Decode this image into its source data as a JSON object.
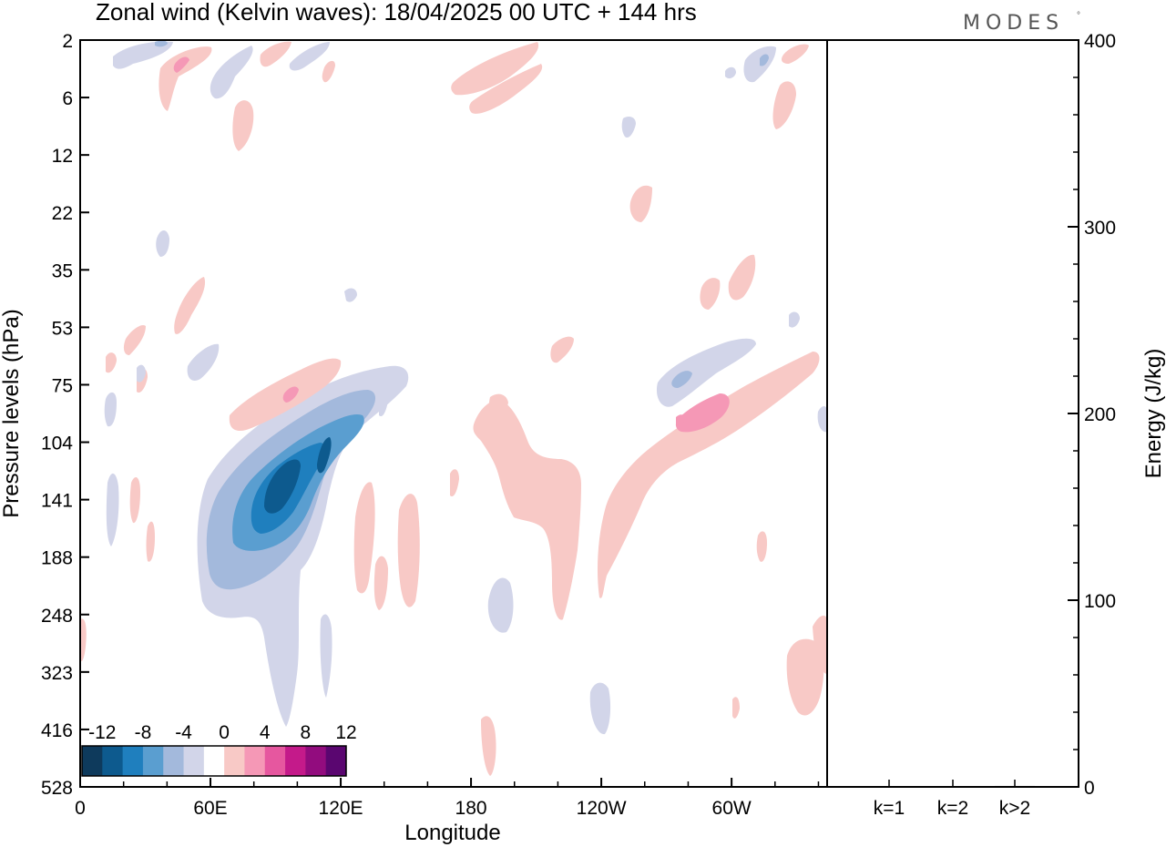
{
  "header": {
    "title": "Zonal wind (Kelvin waves):  18/04/2025  00 UTC  + 144 hrs",
    "logo_text": "MODES",
    "logo_mark": "°"
  },
  "chart_data": [
    {
      "type": "heatmap",
      "title": "Zonal wind (Kelvin waves):  18/04/2025  00 UTC  + 144 hrs",
      "xlabel": "Longitude",
      "ylabel": "Pressure levels (hPa)",
      "x_ticks": [
        "0",
        "60E",
        "120E",
        "180",
        "120W",
        "60W"
      ],
      "x_tick_values": [
        0,
        60,
        120,
        180,
        240,
        300
      ],
      "xlim": [
        0,
        344
      ],
      "y_ticks": [
        "2",
        "6",
        "12",
        "22",
        "35",
        "53",
        "75",
        "104",
        "141",
        "188",
        "248",
        "323",
        "416",
        "528"
      ],
      "y_scale": "model levels (reversed, top = 2 hPa)",
      "colorbar": {
        "labels": [
          "-12",
          "-8",
          "-4",
          "0",
          "4",
          "8",
          "12"
        ],
        "levels": [
          -14,
          -12,
          -10,
          -8,
          -6,
          -4,
          -2,
          2,
          4,
          6,
          8,
          10,
          12,
          14
        ],
        "colors": [
          "#0e3a5c",
          "#0d5a8e",
          "#1f7fbe",
          "#5a9ed0",
          "#a3b9dc",
          "#d2d5e9",
          "#ffffff",
          "#f8c9c6",
          "#f598b6",
          "#e6579f",
          "#c41a8a",
          "#920c7e",
          "#5a0670"
        ],
        "position": "bottom-left inset"
      },
      "features": [
        {
          "name": "negative anomaly band",
          "from_lon": 60,
          "to_lon": 150,
          "from_hPa": 300,
          "to_hPa": 80,
          "min_value": -13
        },
        {
          "name": "positive anomaly band",
          "from_lon": 270,
          "to_lon": 340,
          "from_hPa": 150,
          "to_hPa": 80,
          "max_value": 7
        },
        {
          "name": "positive band",
          "from_lon": 180,
          "to_lon": 250,
          "from_hPa": 250,
          "to_hPa": 90,
          "max_value": 3
        }
      ]
    },
    {
      "type": "bar",
      "categories": [
        "k=1",
        "k=2",
        "k>2"
      ],
      "values": [
        0.3,
        0.3,
        0.5
      ],
      "ylabel": "Energy (J/kg)",
      "ylim": [
        0,
        400
      ],
      "y_ticks": [
        "0",
        "100",
        "200",
        "300",
        "400"
      ],
      "y_tick_values": [
        0,
        100,
        200,
        300,
        400
      ],
      "legend": "none",
      "grid": false
    }
  ]
}
